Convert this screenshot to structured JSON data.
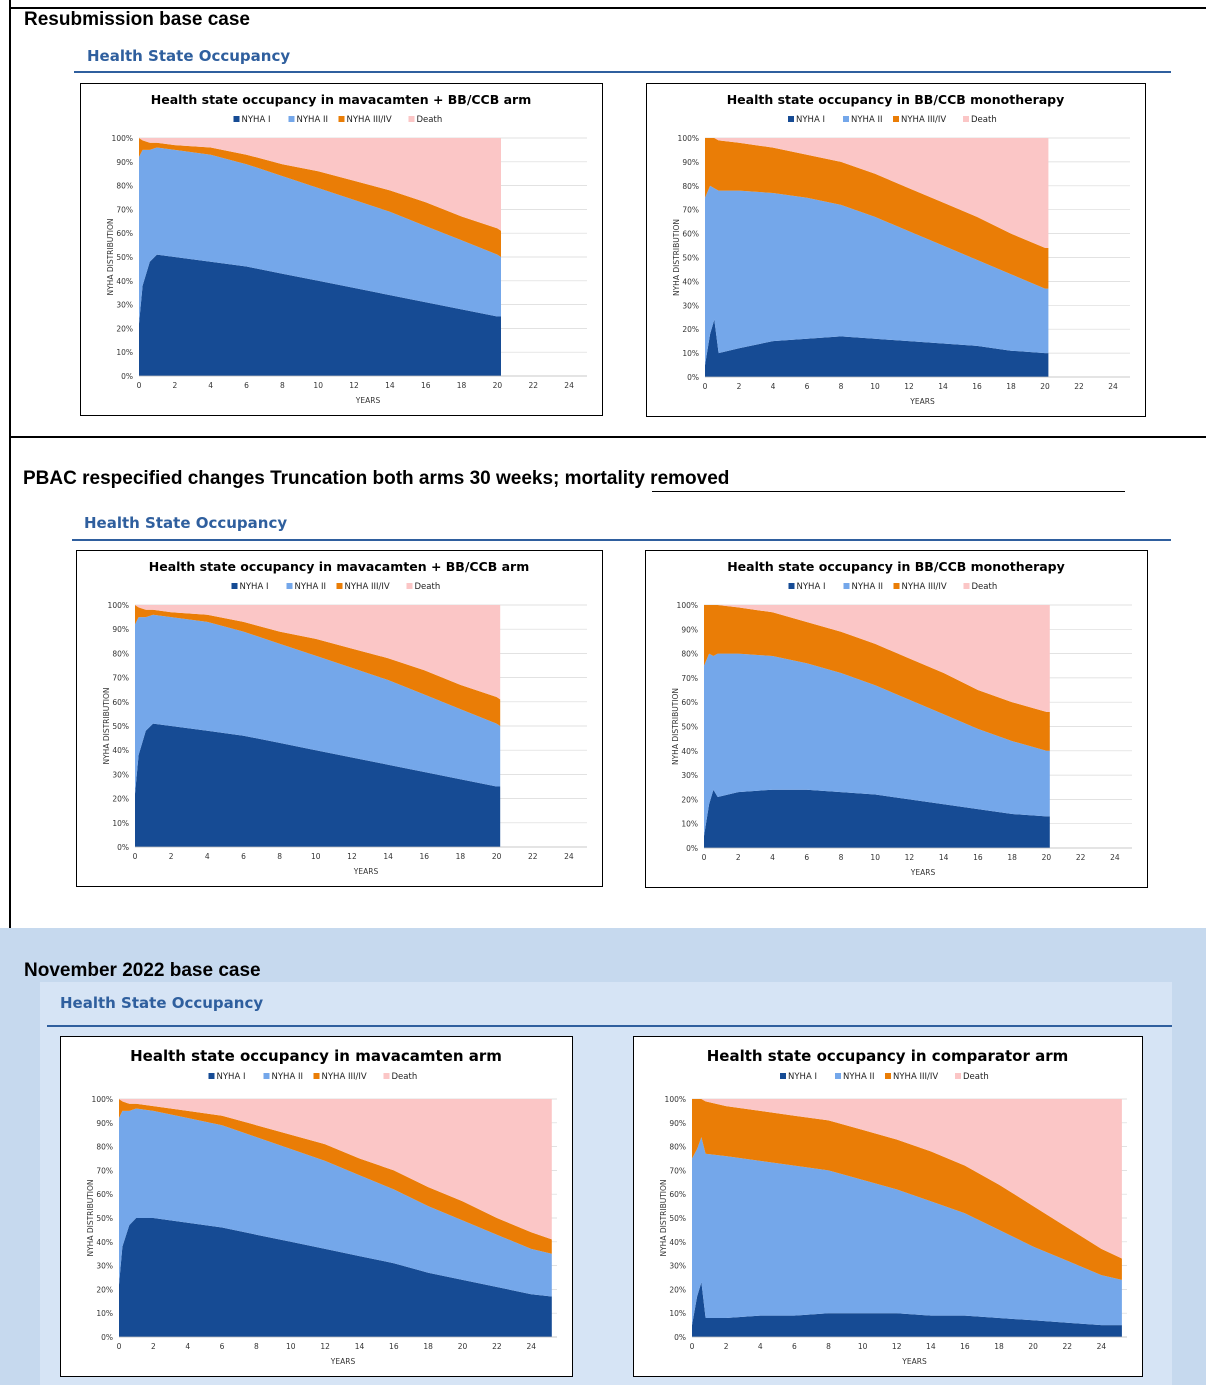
{
  "sections": [
    {
      "title": "Resubmission base case",
      "panel_title": "Health State Occupancy",
      "charts": [
        {
          "title": "Health state occupancy in mavacamten + BB/CCB arm"
        },
        {
          "title": "Health state occupancy in BB/CCB monotherapy"
        }
      ]
    },
    {
      "title": "PBAC respecified changes Truncation both arms 30 weeks; mortality removed",
      "panel_title": "Health State Occupancy",
      "charts": [
        {
          "title": "Health state occupancy in mavacamten + BB/CCB arm"
        },
        {
          "title": "Health state occupancy in BB/CCB monotherapy"
        }
      ]
    },
    {
      "title": "November 2022 base case",
      "panel_title": "Health State Occupancy",
      "charts": [
        {
          "title": "Health state occupancy in mavacamten arm"
        },
        {
          "title": "Health state occupancy in comparator arm"
        }
      ]
    }
  ],
  "legend": [
    "NYHA I",
    "NYHA II",
    "NYHA III/IV",
    "Death"
  ],
  "colors": {
    "NYHA I": "#164b94",
    "NYHA II": "#74a7ea",
    "NYHA III/IV": "#ea7d06",
    "Death": "#fbc6c6",
    "panel_title": "#2f5f9e",
    "band": "#c6d9ee",
    "band_inner": "#d6e4f5"
  },
  "chart_data": [
    {
      "type": "area",
      "stacked": true,
      "title": "Health state occupancy in mavacamten + BB/CCB arm",
      "xlabel": "YEARS",
      "ylabel": "NYHA DISTRIBUTION",
      "xlim": [
        0,
        25
      ],
      "ylim": [
        0,
        100
      ],
      "xticks": [
        0,
        2,
        4,
        6,
        8,
        10,
        12,
        14,
        16,
        18,
        20,
        22,
        24
      ],
      "yticks": [
        "0%",
        "10%",
        "20%",
        "30%",
        "40%",
        "50%",
        "60%",
        "70%",
        "80%",
        "90%",
        "100%"
      ],
      "x": [
        0,
        0.2,
        0.6,
        1,
        2,
        4,
        6,
        8,
        10,
        12,
        14,
        16,
        18,
        20,
        20.2
      ],
      "series": [
        {
          "name": "NYHA I",
          "values": [
            22,
            38,
            48,
            51,
            50,
            48,
            46,
            43,
            40,
            37,
            34,
            31,
            28,
            25,
            25
          ]
        },
        {
          "name": "NYHA II",
          "values": [
            70,
            57,
            47,
            45,
            45,
            45,
            43,
            41,
            39,
            37,
            35,
            32,
            29,
            26,
            25
          ]
        },
        {
          "name": "NYHA III/IV",
          "values": [
            8,
            4,
            3,
            2,
            2,
            3,
            4,
            5,
            7,
            8,
            9,
            10,
            10,
            11,
            11
          ]
        },
        {
          "name": "Death",
          "values": [
            0,
            1,
            2,
            2,
            3,
            4,
            7,
            11,
            14,
            18,
            22,
            27,
            33,
            38,
            39
          ]
        }
      ],
      "legend_position": "top",
      "grid": true
    },
    {
      "type": "area",
      "stacked": true,
      "title": "Health state occupancy in BB/CCB monotherapy",
      "xlabel": "YEARS",
      "ylabel": "NYHA DISTRIBUTION",
      "xlim": [
        0,
        25
      ],
      "ylim": [
        0,
        100
      ],
      "xticks": [
        0,
        2,
        4,
        6,
        8,
        10,
        12,
        14,
        16,
        18,
        20,
        22,
        24
      ],
      "yticks": [
        "0%",
        "10%",
        "20%",
        "30%",
        "40%",
        "50%",
        "60%",
        "70%",
        "80%",
        "90%",
        "100%"
      ],
      "x": [
        0,
        0.3,
        0.55,
        0.8,
        2,
        4,
        6,
        8,
        10,
        12,
        14,
        16,
        18,
        20,
        20.2
      ],
      "series": [
        {
          "name": "NYHA I",
          "values": [
            5,
            18,
            24,
            10,
            12,
            15,
            16,
            17,
            16,
            15,
            14,
            13,
            11,
            10,
            10
          ]
        },
        {
          "name": "NYHA II",
          "values": [
            70,
            62,
            55,
            68,
            66,
            62,
            59,
            55,
            51,
            46,
            41,
            36,
            32,
            27,
            27
          ]
        },
        {
          "name": "NYHA III/IV",
          "values": [
            25,
            20,
            21,
            21,
            20,
            19,
            18,
            18,
            18,
            18,
            18,
            18,
            17,
            17,
            17
          ]
        },
        {
          "name": "Death",
          "values": [
            0,
            0,
            0,
            1,
            2,
            4,
            7,
            10,
            15,
            21,
            27,
            33,
            40,
            46,
            46
          ]
        }
      ],
      "legend_position": "top",
      "grid": true
    },
    {
      "type": "area",
      "stacked": true,
      "title": "Health state occupancy in mavacamten + BB/CCB arm",
      "xlabel": "YEARS",
      "ylabel": "NYHA DISTRIBUTION",
      "xlim": [
        0,
        25
      ],
      "ylim": [
        0,
        100
      ],
      "xticks": [
        0,
        2,
        4,
        6,
        8,
        10,
        12,
        14,
        16,
        18,
        20,
        22,
        24
      ],
      "yticks": [
        "0%",
        "10%",
        "20%",
        "30%",
        "40%",
        "50%",
        "60%",
        "70%",
        "80%",
        "90%",
        "100%"
      ],
      "x": [
        0,
        0.2,
        0.6,
        1,
        2,
        4,
        6,
        8,
        10,
        12,
        14,
        16,
        18,
        20,
        20.2
      ],
      "series": [
        {
          "name": "NYHA I",
          "values": [
            22,
            38,
            48,
            51,
            50,
            48,
            46,
            43,
            40,
            37,
            34,
            31,
            28,
            25,
            25
          ]
        },
        {
          "name": "NYHA II",
          "values": [
            70,
            57,
            47,
            45,
            45,
            45,
            43,
            41,
            39,
            37,
            35,
            32,
            29,
            26,
            25
          ]
        },
        {
          "name": "NYHA III/IV",
          "values": [
            8,
            4,
            3,
            2,
            2,
            3,
            4,
            5,
            7,
            8,
            9,
            10,
            10,
            11,
            11
          ]
        },
        {
          "name": "Death",
          "values": [
            0,
            1,
            2,
            2,
            3,
            4,
            7,
            11,
            14,
            18,
            22,
            27,
            33,
            38,
            39
          ]
        }
      ],
      "legend_position": "top",
      "grid": true
    },
    {
      "type": "area",
      "stacked": true,
      "title": "Health state occupancy in BB/CCB monotherapy",
      "xlabel": "YEARS",
      "ylabel": "NYHA DISTRIBUTION",
      "xlim": [
        0,
        25
      ],
      "ylim": [
        0,
        100
      ],
      "xticks": [
        0,
        2,
        4,
        6,
        8,
        10,
        12,
        14,
        16,
        18,
        20,
        22,
        24
      ],
      "yticks": [
        "0%",
        "10%",
        "20%",
        "30%",
        "40%",
        "50%",
        "60%",
        "70%",
        "80%",
        "90%",
        "100%"
      ],
      "x": [
        0,
        0.3,
        0.55,
        0.8,
        2,
        4,
        6,
        8,
        10,
        12,
        14,
        16,
        18,
        20,
        20.2
      ],
      "series": [
        {
          "name": "NYHA I",
          "values": [
            5,
            18,
            24,
            21,
            23,
            24,
            24,
            23,
            22,
            20,
            18,
            16,
            14,
            13,
            13
          ]
        },
        {
          "name": "NYHA II",
          "values": [
            70,
            62,
            55,
            59,
            57,
            55,
            52,
            49,
            45,
            41,
            37,
            33,
            30,
            27,
            27
          ]
        },
        {
          "name": "NYHA III/IV",
          "values": [
            25,
            20,
            21,
            20,
            19,
            18,
            17,
            17,
            17,
            17,
            17,
            16,
            16,
            16,
            16
          ]
        },
        {
          "name": "Death",
          "values": [
            0,
            0,
            0,
            0,
            1,
            3,
            7,
            11,
            16,
            22,
            28,
            35,
            40,
            44,
            44
          ]
        }
      ],
      "legend_position": "top",
      "grid": true
    },
    {
      "type": "area",
      "stacked": true,
      "title": "Health state occupancy in mavacamten arm",
      "xlabel": "YEARS",
      "ylabel": "NYHA DISTRIBUTION",
      "xlim": [
        0,
        25.5
      ],
      "ylim": [
        0,
        100
      ],
      "xticks": [
        0,
        2,
        4,
        6,
        8,
        10,
        12,
        14,
        16,
        18,
        20,
        22,
        24
      ],
      "yticks": [
        "0%",
        "10%",
        "20%",
        "30%",
        "40%",
        "50%",
        "60%",
        "70%",
        "80%",
        "90%",
        "100%"
      ],
      "x": [
        0,
        0.2,
        0.6,
        1,
        2,
        4,
        6,
        8,
        10,
        12,
        14,
        16,
        18,
        20,
        22,
        24,
        25.2
      ],
      "series": [
        {
          "name": "NYHA I",
          "values": [
            22,
            38,
            47,
            50,
            50,
            48,
            46,
            43,
            40,
            37,
            34,
            31,
            27,
            24,
            21,
            18,
            17
          ]
        },
        {
          "name": "NYHA II",
          "values": [
            70,
            57,
            48,
            46,
            45,
            44,
            43,
            41,
            39,
            37,
            34,
            31,
            28,
            25,
            22,
            19,
            18
          ]
        },
        {
          "name": "NYHA III/IV",
          "values": [
            8,
            4,
            3,
            2,
            2,
            3,
            4,
            5,
            6,
            7,
            7,
            8,
            8,
            8,
            7,
            7,
            6
          ]
        },
        {
          "name": "Death",
          "values": [
            0,
            1,
            2,
            2,
            3,
            5,
            7,
            11,
            15,
            19,
            25,
            30,
            37,
            43,
            50,
            56,
            59
          ]
        }
      ],
      "legend_position": "top",
      "grid": true
    },
    {
      "type": "area",
      "stacked": true,
      "title": "Health state occupancy in comparator arm",
      "xlabel": "YEARS",
      "ylabel": "NYHA DISTRIBUTION",
      "xlim": [
        0,
        25.5
      ],
      "ylim": [
        0,
        100
      ],
      "xticks": [
        0,
        2,
        4,
        6,
        8,
        10,
        12,
        14,
        16,
        18,
        20,
        22,
        24
      ],
      "yticks": [
        "0%",
        "10%",
        "20%",
        "30%",
        "40%",
        "50%",
        "60%",
        "70%",
        "80%",
        "90%",
        "100%"
      ],
      "x": [
        0,
        0.3,
        0.55,
        0.8,
        2,
        4,
        6,
        8,
        10,
        12,
        14,
        16,
        18,
        20,
        22,
        24,
        25.2
      ],
      "series": [
        {
          "name": "NYHA I",
          "values": [
            5,
            17,
            23,
            8,
            8,
            9,
            9,
            10,
            10,
            10,
            9,
            9,
            8,
            7,
            6,
            5,
            5
          ]
        },
        {
          "name": "NYHA II",
          "values": [
            70,
            62,
            61,
            69,
            68,
            65,
            63,
            60,
            56,
            52,
            48,
            43,
            37,
            31,
            26,
            21,
            19
          ]
        },
        {
          "name": "NYHA III/IV",
          "values": [
            25,
            21,
            16,
            22,
            21,
            21,
            21,
            21,
            21,
            21,
            21,
            20,
            19,
            17,
            14,
            11,
            9
          ]
        },
        {
          "name": "Death",
          "values": [
            0,
            0,
            0,
            1,
            3,
            5,
            7,
            9,
            13,
            17,
            22,
            28,
            36,
            45,
            54,
            63,
            67
          ]
        }
      ],
      "legend_position": "top",
      "grid": true
    }
  ]
}
